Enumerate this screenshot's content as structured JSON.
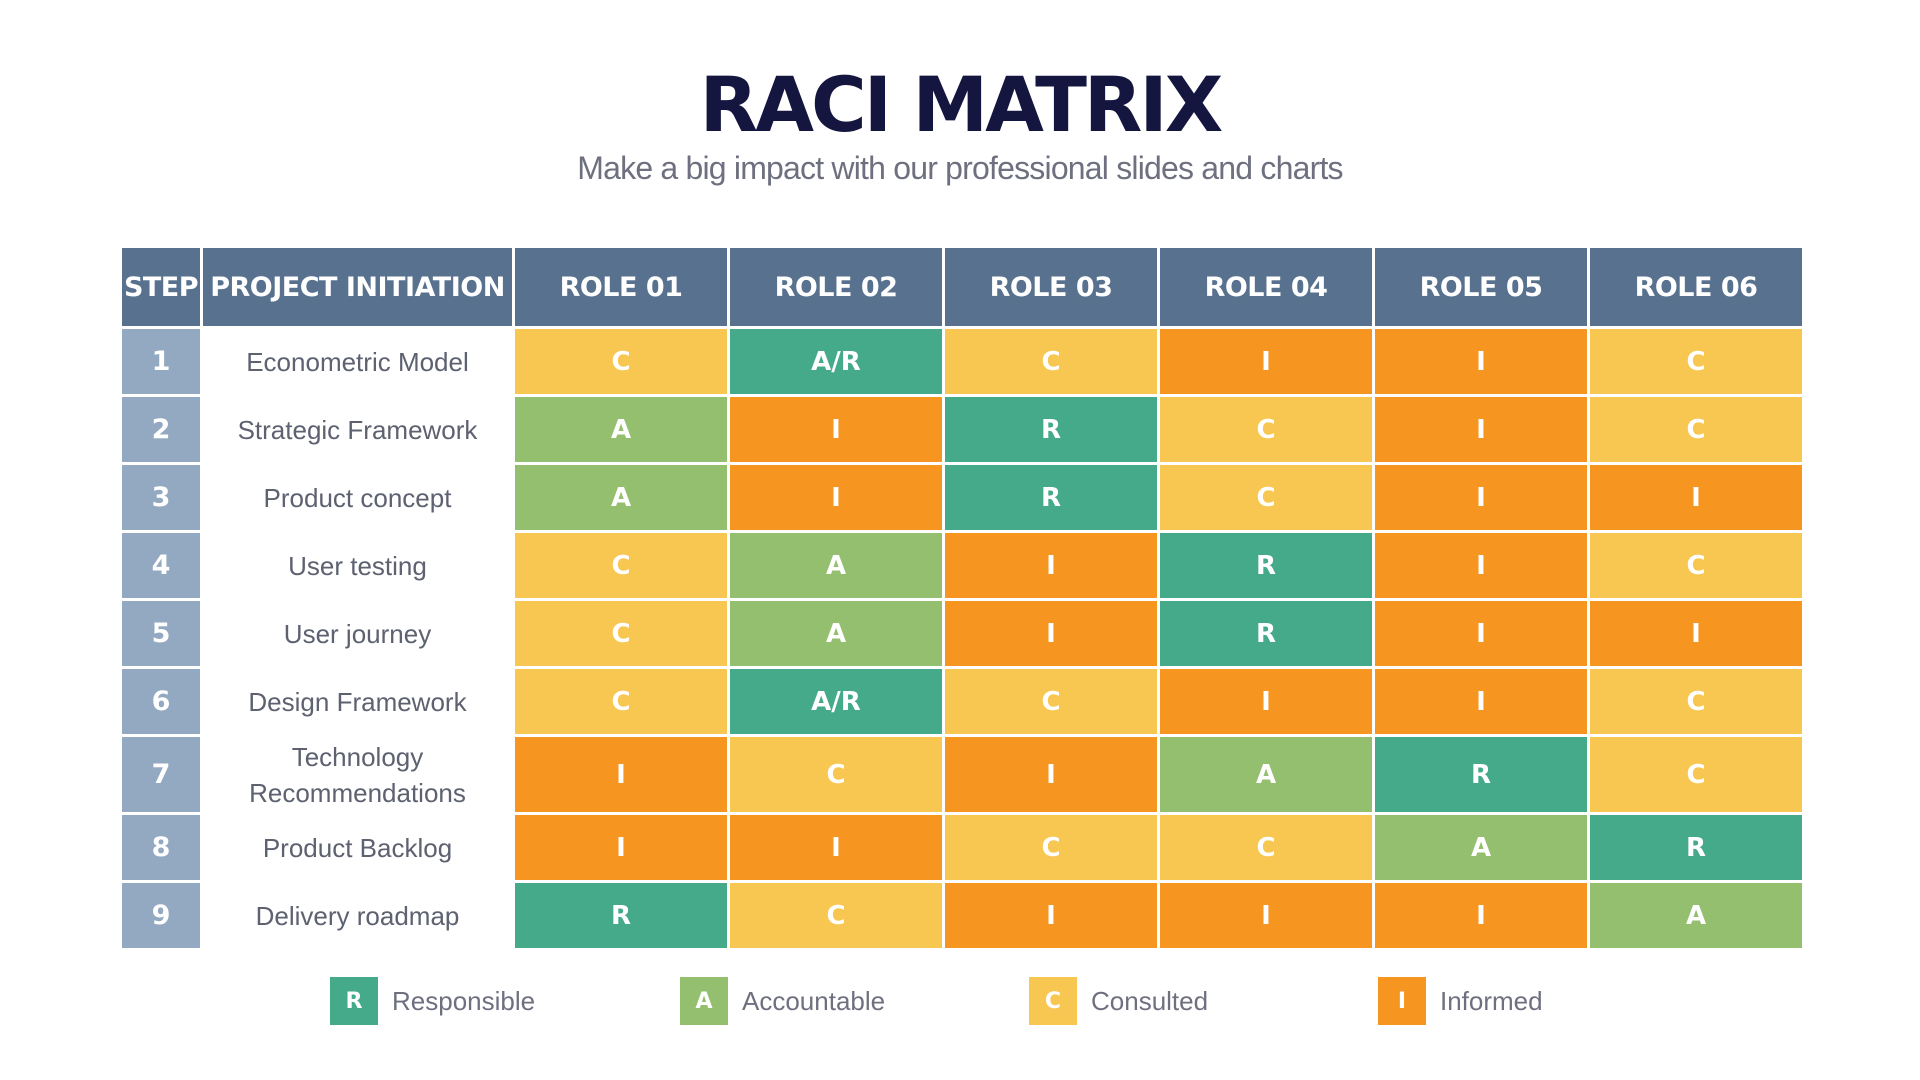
{
  "title": "RACI MATRIX",
  "subtitle": "Make a big impact with our professional slides and charts",
  "colors": {
    "R": "#45aa8a",
    "A": "#93bf6e",
    "C": "#f8c752",
    "I": "#f6951f",
    "header": "#58718f",
    "step": "#93a9c1",
    "title": "#14163f"
  },
  "table": {
    "headers": [
      "STEP",
      "PROJECT INITIATION",
      "ROLE 01",
      "ROLE 02",
      "ROLE 03",
      "ROLE 04",
      "ROLE 05",
      "ROLE 06"
    ],
    "rows": [
      {
        "step": "1",
        "task": "Econometric Model",
        "cells": [
          "C",
          "A/R",
          "C",
          "I",
          "I",
          "C"
        ]
      },
      {
        "step": "2",
        "task": "Strategic Framework",
        "cells": [
          "A",
          "I",
          "R",
          "C",
          "I",
          "C"
        ]
      },
      {
        "step": "3",
        "task": "Product concept",
        "cells": [
          "A",
          "I",
          "R",
          "C",
          "I",
          "I"
        ]
      },
      {
        "step": "4",
        "task": "User testing",
        "cells": [
          "C",
          "A",
          "I",
          "R",
          "I",
          "C"
        ]
      },
      {
        "step": "5",
        "task": "User journey",
        "cells": [
          "C",
          "A",
          "I",
          "R",
          "I",
          "I"
        ]
      },
      {
        "step": "6",
        "task": "Design Framework",
        "cells": [
          "C",
          "A/R",
          "C",
          "I",
          "I",
          "C"
        ]
      },
      {
        "step": "7",
        "task": "Technology Recommendations",
        "cells": [
          "I",
          "C",
          "I",
          "A",
          "R",
          "C"
        ]
      },
      {
        "step": "8",
        "task": "Product Backlog",
        "cells": [
          "I",
          "I",
          "C",
          "C",
          "A",
          "R"
        ]
      },
      {
        "step": "9",
        "task": "Delivery roadmap",
        "cells": [
          "R",
          "C",
          "I",
          "I",
          "I",
          "A"
        ]
      }
    ]
  },
  "legend": [
    {
      "key": "R",
      "label": "Responsible"
    },
    {
      "key": "A",
      "label": "Accountable"
    },
    {
      "key": "C",
      "label": "Consulted"
    },
    {
      "key": "I",
      "label": "Informed"
    }
  ]
}
